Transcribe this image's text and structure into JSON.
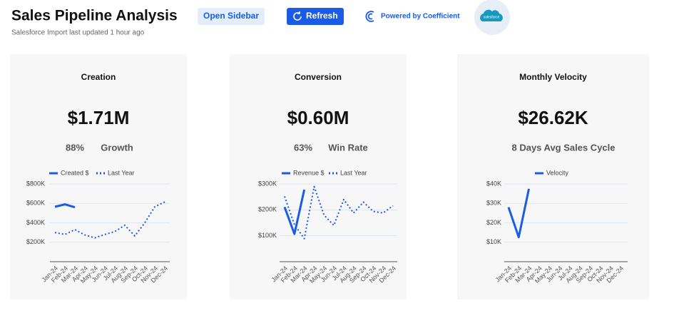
{
  "header": {
    "title": "Sales Pipeline Analysis",
    "subtitle": "Salesforce Import last updated 1 hour ago"
  },
  "buttons": {
    "open_sidebar": "Open Sidebar",
    "refresh": "Refresh"
  },
  "powered_by": "Powered by Coefficient",
  "logo": "salesforce",
  "cards": [
    {
      "kpi": "$1.71M",
      "stats": [
        "88%",
        "Growth"
      ]
    },
    {
      "kpi": "$0.60M",
      "stats": [
        "63%",
        "Win Rate"
      ]
    },
    {
      "kpi": "$26.62K",
      "stats": [
        "8 Days Avg Sales Cycle"
      ]
    }
  ],
  "chart_data": [
    {
      "type": "line",
      "title": "Creation",
      "categories": [
        "Jan-24",
        "Feb-24",
        "Mar-24",
        "Apr-24",
        "May-24",
        "Jun-24",
        "Jul-24",
        "Aug-24",
        "Sep-24",
        "Oct-24",
        "Nov-24",
        "Dec-24"
      ],
      "series": [
        {
          "name": "Created $",
          "color": "#1a5ce8",
          "dashed": false,
          "values": [
            565000,
            590000,
            560000,
            null,
            null,
            null,
            null,
            null,
            null,
            null,
            null,
            null
          ]
        },
        {
          "name": "Last Year",
          "color": "#1a5ce8",
          "dashed": true,
          "values": [
            300000,
            280000,
            330000,
            275000,
            245000,
            280000,
            310000,
            375000,
            265000,
            400000,
            565000,
            615000
          ]
        }
      ],
      "ylim": [
        0,
        800000
      ],
      "yticks": [
        {
          "value": 200000,
          "label": "$200K"
        },
        {
          "value": 400000,
          "label": "$400K"
        },
        {
          "value": 600000,
          "label": "$600K"
        },
        {
          "value": 800000,
          "label": "$800K"
        }
      ],
      "grid": true
    },
    {
      "type": "line",
      "title": "Conversion",
      "categories": [
        "Jan-24",
        "Feb-24",
        "Mar-24",
        "Apr-24",
        "May-24",
        "Jun-24",
        "Jul-24",
        "Aug-24",
        "Sep-24",
        "Oct-24",
        "Nov-24",
        "Dec-24"
      ],
      "series": [
        {
          "name": "Revenue $",
          "color": "#1a5ce8",
          "dashed": false,
          "values": [
            211000,
            107000,
            278000,
            null,
            null,
            null,
            null,
            null,
            null,
            null,
            null,
            null
          ]
        },
        {
          "name": "Last Year",
          "color": "#1a5ce8",
          "dashed": true,
          "values": [
            252000,
            143000,
            89000,
            290000,
            180000,
            140000,
            240000,
            188000,
            230000,
            194000,
            188000,
            216000
          ]
        }
      ],
      "ylim": [
        0,
        300000
      ],
      "yticks": [
        {
          "value": 100000,
          "label": "$100K"
        },
        {
          "value": 200000,
          "label": "$200K"
        },
        {
          "value": 300000,
          "label": "$300K"
        }
      ],
      "grid": true
    },
    {
      "type": "line",
      "title": "Monthly Velocity",
      "categories": [
        "Jan-24",
        "Feb-24",
        "Mar-24",
        "Apr-24",
        "May-24",
        "Jun-24",
        "Jul-24",
        "Aug-24",
        "Sep-24",
        "Oct-24",
        "Nov-24",
        "Dec-24"
      ],
      "series": [
        {
          "name": "Velocity",
          "color": "#1a5ce8",
          "dashed": false,
          "values": [
            28000,
            12600,
            37500,
            null,
            null,
            null,
            null,
            null,
            null,
            null,
            null,
            null
          ]
        }
      ],
      "ylim": [
        0,
        40000
      ],
      "yticks": [
        {
          "value": 10000,
          "label": "$10K"
        },
        {
          "value": 20000,
          "label": "$20K"
        },
        {
          "value": 30000,
          "label": "$30K"
        },
        {
          "value": 40000,
          "label": "$40K"
        }
      ],
      "grid": true
    }
  ]
}
